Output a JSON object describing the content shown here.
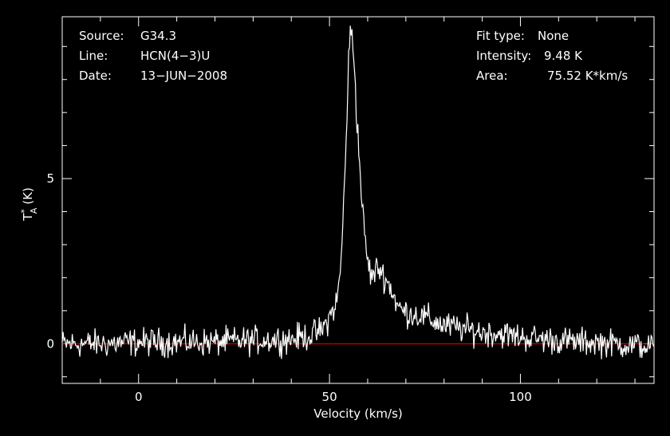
{
  "header": {
    "source_label": "Source:",
    "source_value": "G34.3",
    "line_label": "Line:",
    "line_value": "HCN(4−3)U",
    "date_label": "Date:",
    "date_value": "13−JUN−2008",
    "fit_label": "Fit type:",
    "fit_value": "None",
    "intensity_label": "Intensity:",
    "intensity_value": "9.48 K",
    "area_label": "Area:",
    "area_value": "75.52 K*km/s"
  },
  "chart_data": {
    "type": "line",
    "xlabel": "Velocity (km/s)",
    "ylabel_main": "T",
    "ylabel_sup": "*",
    "ylabel_sub": "A",
    "ylabel_unit": "(K)",
    "xlim": [
      -20,
      135
    ],
    "ylim": [
      -1.2,
      9.9
    ],
    "x_ticks": [
      0,
      50,
      100
    ],
    "y_ticks": [
      0,
      5
    ],
    "baseline_y": 0,
    "colors": {
      "spectrum": "#ffffff",
      "baseline": "#ff0000",
      "axes": "#ffffff",
      "background": "#000000"
    },
    "series": [
      {
        "x": [
          -20,
          -10,
          0,
          10,
          20,
          30,
          40,
          45,
          48,
          50,
          52,
          53,
          54,
          55,
          55.5,
          56,
          56.5,
          57,
          58,
          59,
          60,
          61,
          62,
          63,
          64,
          65,
          66,
          67,
          68,
          70,
          72,
          75,
          80,
          85,
          90,
          95,
          100,
          105,
          110,
          115,
          120,
          125,
          130,
          135
        ],
        "y": [
          0.0,
          0.0,
          0.05,
          0.05,
          0.05,
          0.1,
          0.15,
          0.25,
          0.4,
          0.8,
          1.3,
          2.4,
          5.0,
          8.5,
          9.48,
          9.3,
          8.5,
          7.2,
          5.2,
          3.5,
          2.5,
          2.0,
          2.2,
          2.3,
          2.1,
          1.9,
          1.7,
          1.4,
          1.1,
          0.95,
          0.9,
          0.8,
          0.55,
          0.45,
          0.35,
          0.3,
          0.2,
          0.15,
          0.1,
          0.05,
          0.05,
          0.0,
          -0.05,
          -0.1
        ]
      }
    ]
  }
}
